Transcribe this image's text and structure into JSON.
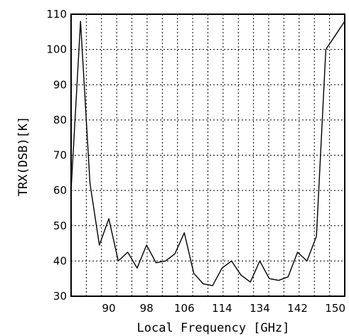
{
  "chart_data": {
    "type": "line",
    "title": "",
    "xlabel": "Local Frequency [GHz]",
    "ylabel": "TRX(DSB)[K]",
    "xlim": [
      0,
      29
    ],
    "ylim": [
      30,
      110
    ],
    "grid": true,
    "x_grid_count": 18,
    "y_ticks": [
      30,
      40,
      50,
      60,
      70,
      80,
      90,
      100,
      110
    ],
    "x_tick_labels": [
      {
        "pos": 4,
        "label": "90"
      },
      {
        "pos": 8,
        "label": "98"
      },
      {
        "pos": 12,
        "label": "106"
      },
      {
        "pos": 16,
        "label": "114"
      },
      {
        "pos": 20,
        "label": "134"
      },
      {
        "pos": 24,
        "label": "142"
      },
      {
        "pos": 28,
        "label": "150"
      }
    ],
    "series": [
      {
        "x": [
          0,
          1,
          2,
          3,
          4,
          5,
          6,
          7,
          8,
          9,
          10,
          11,
          12,
          13,
          14,
          15,
          16,
          17,
          18,
          19,
          20,
          21,
          22,
          23,
          24,
          25,
          26,
          27,
          28,
          29
        ],
        "values": [
          60,
          108,
          62,
          44.5,
          52,
          40,
          42.5,
          38,
          44.5,
          39.5,
          40,
          42,
          48,
          36.5,
          33.5,
          33,
          38,
          40,
          36,
          34,
          40,
          35,
          34.5,
          35.5,
          42.5,
          40,
          47,
          100,
          104,
          108
        ]
      }
    ]
  }
}
